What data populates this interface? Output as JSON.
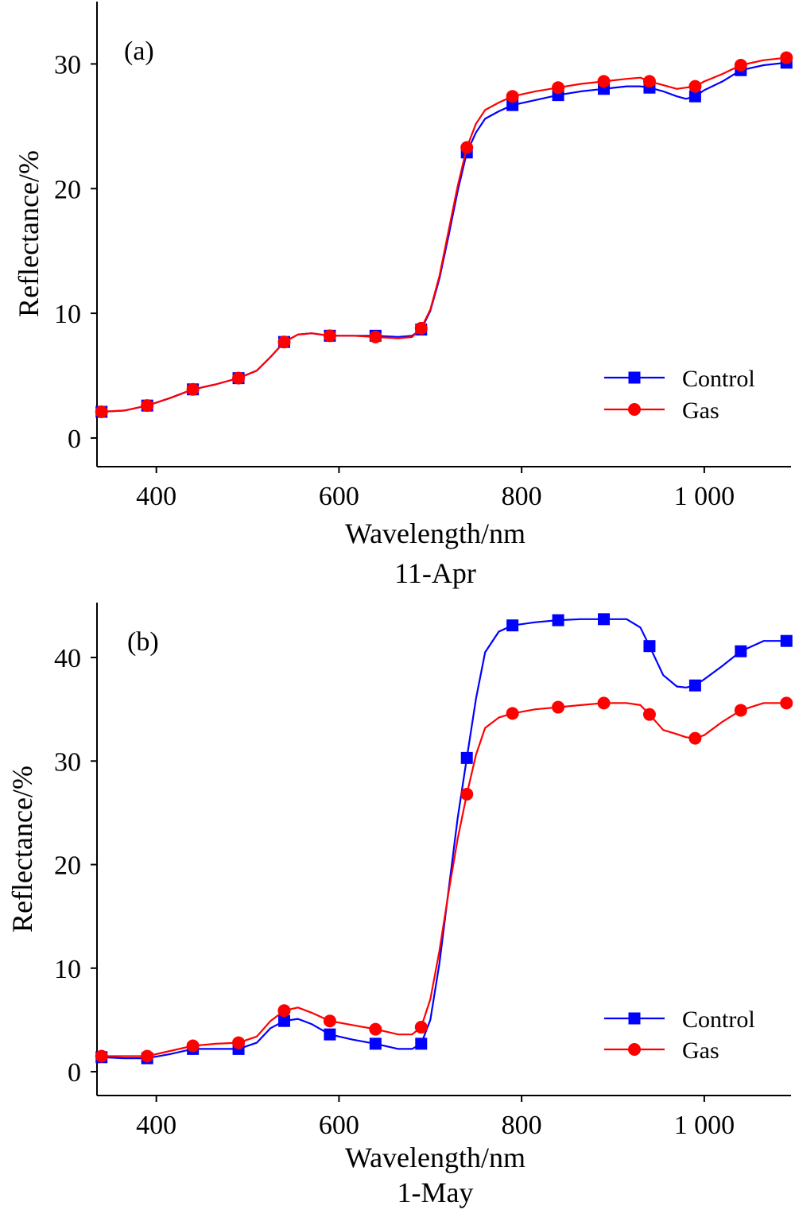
{
  "chart_data": [
    {
      "type": "line",
      "panel_label": "(a)",
      "xlabel": "Wavelength/nm",
      "caption": "11-Apr",
      "ylabel": "Reflectance/%",
      "xlim": [
        335,
        1095
      ],
      "ylim": [
        -2.3,
        35
      ],
      "xticks": [
        400,
        600,
        800,
        1000
      ],
      "xtick_labels": [
        "400",
        "600",
        "800",
        "1 000"
      ],
      "yticks": [
        0,
        10,
        20,
        30
      ],
      "ytick_labels": [
        "0",
        "10",
        "20",
        "30"
      ],
      "legend_position": "bottom-right",
      "grid": false,
      "series": [
        {
          "name": "Control",
          "color": "#0000ff",
          "marker": "square",
          "curve": [
            [
              340,
              2.1
            ],
            [
              365,
              2.2
            ],
            [
              390,
              2.6
            ],
            [
              415,
              3.2
            ],
            [
              440,
              3.9
            ],
            [
              465,
              4.3
            ],
            [
              490,
              4.8
            ],
            [
              510,
              5.4
            ],
            [
              525,
              6.5
            ],
            [
              540,
              7.7
            ],
            [
              555,
              8.3
            ],
            [
              570,
              8.4
            ],
            [
              590,
              8.2
            ],
            [
              615,
              8.2
            ],
            [
              640,
              8.2
            ],
            [
              665,
              8.1
            ],
            [
              680,
              8.2
            ],
            [
              690,
              8.7
            ],
            [
              700,
              10.2
            ],
            [
              710,
              12.8
            ],
            [
              720,
              16.2
            ],
            [
              730,
              19.8
            ],
            [
              740,
              22.9
            ],
            [
              750,
              24.5
            ],
            [
              760,
              25.6
            ],
            [
              775,
              26.2
            ],
            [
              790,
              26.7
            ],
            [
              815,
              27.1
            ],
            [
              840,
              27.5
            ],
            [
              865,
              27.8
            ],
            [
              890,
              28.0
            ],
            [
              915,
              28.2
            ],
            [
              930,
              28.2
            ],
            [
              940,
              28.1
            ],
            [
              955,
              27.8
            ],
            [
              970,
              27.4
            ],
            [
              980,
              27.2
            ],
            [
              990,
              27.4
            ],
            [
              1000,
              27.9
            ],
            [
              1020,
              28.6
            ],
            [
              1040,
              29.5
            ],
            [
              1065,
              29.9
            ],
            [
              1090,
              30.1
            ]
          ],
          "markers": [
            [
              340,
              2.1
            ],
            [
              390,
              2.6
            ],
            [
              440,
              3.9
            ],
            [
              490,
              4.8
            ],
            [
              540,
              7.7
            ],
            [
              590,
              8.2
            ],
            [
              640,
              8.2
            ],
            [
              690,
              8.7
            ],
            [
              740,
              22.9
            ],
            [
              790,
              26.7
            ],
            [
              840,
              27.5
            ],
            [
              890,
              28.0
            ],
            [
              940,
              28.1
            ],
            [
              990,
              27.4
            ],
            [
              1040,
              29.5
            ],
            [
              1090,
              30.1
            ]
          ]
        },
        {
          "name": "Gas",
          "color": "#ff0000",
          "marker": "circle",
          "curve": [
            [
              340,
              2.1
            ],
            [
              365,
              2.2
            ],
            [
              390,
              2.6
            ],
            [
              415,
              3.2
            ],
            [
              440,
              3.9
            ],
            [
              465,
              4.3
            ],
            [
              490,
              4.8
            ],
            [
              510,
              5.4
            ],
            [
              525,
              6.5
            ],
            [
              540,
              7.7
            ],
            [
              555,
              8.3
            ],
            [
              570,
              8.4
            ],
            [
              590,
              8.2
            ],
            [
              615,
              8.2
            ],
            [
              640,
              8.1
            ],
            [
              665,
              8.0
            ],
            [
              680,
              8.1
            ],
            [
              690,
              8.8
            ],
            [
              700,
              10.3
            ],
            [
              710,
              13.0
            ],
            [
              720,
              16.6
            ],
            [
              730,
              20.2
            ],
            [
              740,
              23.3
            ],
            [
              750,
              25.2
            ],
            [
              760,
              26.3
            ],
            [
              775,
              26.9
            ],
            [
              790,
              27.4
            ],
            [
              815,
              27.8
            ],
            [
              840,
              28.1
            ],
            [
              865,
              28.4
            ],
            [
              890,
              28.6
            ],
            [
              915,
              28.8
            ],
            [
              930,
              28.9
            ],
            [
              940,
              28.6
            ],
            [
              955,
              28.3
            ],
            [
              970,
              28.0
            ],
            [
              980,
              28.1
            ],
            [
              990,
              28.2
            ],
            [
              1000,
              28.6
            ],
            [
              1020,
              29.2
            ],
            [
              1040,
              29.9
            ],
            [
              1065,
              30.3
            ],
            [
              1090,
              30.5
            ]
          ],
          "markers": [
            [
              340,
              2.1
            ],
            [
              390,
              2.6
            ],
            [
              440,
              3.9
            ],
            [
              490,
              4.8
            ],
            [
              540,
              7.7
            ],
            [
              590,
              8.2
            ],
            [
              640,
              8.1
            ],
            [
              690,
              8.8
            ],
            [
              740,
              23.3
            ],
            [
              790,
              27.4
            ],
            [
              840,
              28.1
            ],
            [
              890,
              28.6
            ],
            [
              940,
              28.6
            ],
            [
              990,
              28.2
            ],
            [
              1040,
              29.9
            ],
            [
              1090,
              30.5
            ]
          ]
        }
      ]
    },
    {
      "type": "line",
      "panel_label": "(b)",
      "xlabel": "Wavelength/nm",
      "caption": "1-May",
      "ylabel": "Reflectance/%",
      "xlim": [
        335,
        1095
      ],
      "ylim": [
        -2.3,
        45.3
      ],
      "xticks": [
        400,
        600,
        800,
        1000
      ],
      "xtick_labels": [
        "400",
        "600",
        "800",
        "1 000"
      ],
      "yticks": [
        0,
        10,
        20,
        30,
        40
      ],
      "ytick_labels": [
        "0",
        "10",
        "20",
        "30",
        "40"
      ],
      "legend_position": "bottom-right",
      "grid": false,
      "series": [
        {
          "name": "Control",
          "color": "#0000ff",
          "marker": "square",
          "curve": [
            [
              340,
              1.4
            ],
            [
              365,
              1.3
            ],
            [
              390,
              1.3
            ],
            [
              415,
              1.7
            ],
            [
              440,
              2.2
            ],
            [
              465,
              2.2
            ],
            [
              490,
              2.2
            ],
            [
              510,
              2.8
            ],
            [
              525,
              4.2
            ],
            [
              540,
              4.9
            ],
            [
              555,
              5.1
            ],
            [
              570,
              4.6
            ],
            [
              590,
              3.6
            ],
            [
              615,
              3.1
            ],
            [
              640,
              2.7
            ],
            [
              665,
              2.2
            ],
            [
              680,
              2.2
            ],
            [
              690,
              2.7
            ],
            [
              700,
              5.0
            ],
            [
              710,
              10.5
            ],
            [
              720,
              17.5
            ],
            [
              730,
              24.5
            ],
            [
              740,
              30.3
            ],
            [
              750,
              36.0
            ],
            [
              760,
              40.5
            ],
            [
              775,
              42.5
            ],
            [
              790,
              43.1
            ],
            [
              815,
              43.4
            ],
            [
              840,
              43.6
            ],
            [
              865,
              43.7
            ],
            [
              890,
              43.7
            ],
            [
              915,
              43.7
            ],
            [
              930,
              42.9
            ],
            [
              940,
              41.1
            ],
            [
              955,
              38.3
            ],
            [
              970,
              37.2
            ],
            [
              980,
              37.1
            ],
            [
              990,
              37.3
            ],
            [
              1000,
              37.9
            ],
            [
              1020,
              39.2
            ],
            [
              1040,
              40.6
            ],
            [
              1065,
              41.6
            ],
            [
              1090,
              41.6
            ],
            [
              1095,
              41.2
            ]
          ],
          "markers": [
            [
              340,
              1.4
            ],
            [
              390,
              1.3
            ],
            [
              440,
              2.2
            ],
            [
              490,
              2.2
            ],
            [
              540,
              4.9
            ],
            [
              590,
              3.6
            ],
            [
              640,
              2.7
            ],
            [
              690,
              2.7
            ],
            [
              740,
              30.3
            ],
            [
              790,
              43.1
            ],
            [
              840,
              43.6
            ],
            [
              890,
              43.7
            ],
            [
              940,
              41.1
            ],
            [
              990,
              37.3
            ],
            [
              1040,
              40.6
            ],
            [
              1090,
              41.6
            ]
          ]
        },
        {
          "name": "Gas",
          "color": "#ff0000",
          "marker": "circle",
          "curve": [
            [
              340,
              1.5
            ],
            [
              365,
              1.5
            ],
            [
              390,
              1.5
            ],
            [
              415,
              2.0
            ],
            [
              440,
              2.5
            ],
            [
              465,
              2.7
            ],
            [
              490,
              2.8
            ],
            [
              510,
              3.4
            ],
            [
              525,
              4.9
            ],
            [
              540,
              5.9
            ],
            [
              555,
              6.2
            ],
            [
              570,
              5.7
            ],
            [
              590,
              4.9
            ],
            [
              615,
              4.5
            ],
            [
              640,
              4.1
            ],
            [
              665,
              3.6
            ],
            [
              680,
              3.6
            ],
            [
              690,
              4.3
            ],
            [
              700,
              7.0
            ],
            [
              710,
              11.7
            ],
            [
              720,
              17.3
            ],
            [
              730,
              22.5
            ],
            [
              740,
              26.8
            ],
            [
              750,
              30.6
            ],
            [
              760,
              33.2
            ],
            [
              775,
              34.2
            ],
            [
              790,
              34.6
            ],
            [
              815,
              35.0
            ],
            [
              840,
              35.2
            ],
            [
              865,
              35.4
            ],
            [
              890,
              35.6
            ],
            [
              915,
              35.6
            ],
            [
              930,
              35.4
            ],
            [
              940,
              34.5
            ],
            [
              955,
              33.0
            ],
            [
              970,
              32.6
            ],
            [
              980,
              32.3
            ],
            [
              990,
              32.2
            ],
            [
              1000,
              32.5
            ],
            [
              1020,
              33.8
            ],
            [
              1040,
              34.9
            ],
            [
              1065,
              35.6
            ],
            [
              1090,
              35.6
            ],
            [
              1095,
              35.4
            ]
          ],
          "markers": [
            [
              340,
              1.5
            ],
            [
              390,
              1.5
            ],
            [
              440,
              2.5
            ],
            [
              490,
              2.8
            ],
            [
              540,
              5.9
            ],
            [
              590,
              4.9
            ],
            [
              640,
              4.1
            ],
            [
              690,
              4.3
            ],
            [
              740,
              26.8
            ],
            [
              790,
              34.6
            ],
            [
              840,
              35.2
            ],
            [
              890,
              35.6
            ],
            [
              940,
              34.5
            ],
            [
              990,
              32.2
            ],
            [
              1040,
              34.9
            ],
            [
              1090,
              35.6
            ]
          ]
        }
      ]
    }
  ]
}
